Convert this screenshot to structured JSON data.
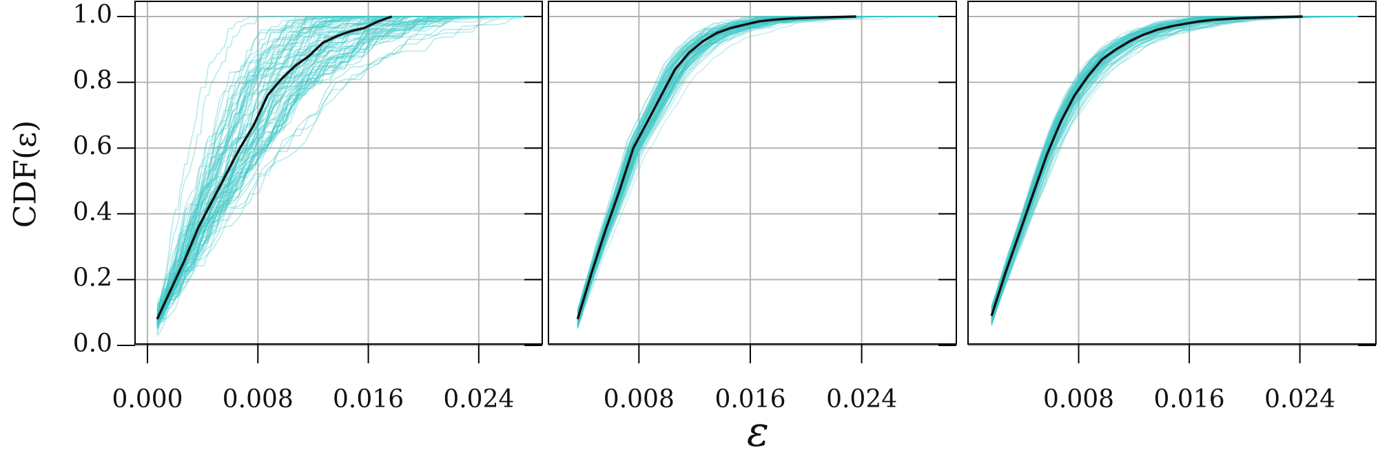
{
  "chart_data": {
    "type": "line",
    "ylabel": "CDF(ε)",
    "xlabel": "ε",
    "ylim": [
      0.0,
      1.0
    ],
    "yticks": [
      0.0,
      0.2,
      0.4,
      0.6,
      0.8,
      1.0
    ],
    "ytick_labels": [
      "0.0",
      "0.2",
      "0.4",
      "0.6",
      "0.8",
      "1.0"
    ],
    "grid": true,
    "colors": {
      "samples": "#40c8c8",
      "mean": "#111111",
      "grid": "#b3b3b3"
    },
    "panels": [
      {
        "id": "panel-1",
        "xlim": [
          -0.0009,
          0.0286
        ],
        "xticks": [
          0.0,
          0.008,
          0.016,
          0.024
        ],
        "xtick_labels": [
          "0.000",
          "0.008",
          "0.016",
          "0.024"
        ],
        "sample_curves": 90,
        "sample_spread": 0.35,
        "mean_curve": {
          "x": [
            0.0007,
            0.0017,
            0.0027,
            0.0037,
            0.0047,
            0.0057,
            0.0067,
            0.0077,
            0.0087,
            0.0097,
            0.0107,
            0.0117,
            0.0127,
            0.0137,
            0.0147,
            0.0157,
            0.0167,
            0.0177
          ],
          "y": [
            0.08,
            0.17,
            0.26,
            0.36,
            0.44,
            0.52,
            0.6,
            0.67,
            0.76,
            0.81,
            0.85,
            0.88,
            0.92,
            0.94,
            0.955,
            0.965,
            0.985,
            1.0
          ]
        }
      },
      {
        "id": "panel-2",
        "xlim": [
          0.0015,
          0.0308
        ],
        "xticks": [
          0.008,
          0.016,
          0.024
        ],
        "xtick_labels": [
          "0.008",
          "0.016",
          "0.024"
        ],
        "sample_curves": 90,
        "sample_spread": 0.12,
        "mean_curve": {
          "x": [
            0.0036,
            0.0046,
            0.0056,
            0.0066,
            0.0076,
            0.0086,
            0.0096,
            0.0106,
            0.0116,
            0.0126,
            0.0136,
            0.0146,
            0.0156,
            0.0166,
            0.0176,
            0.0186,
            0.0196,
            0.0216,
            0.0236
          ],
          "y": [
            0.08,
            0.22,
            0.35,
            0.47,
            0.6,
            0.68,
            0.76,
            0.84,
            0.89,
            0.925,
            0.95,
            0.965,
            0.975,
            0.985,
            0.99,
            0.993,
            0.995,
            0.998,
            1.0
          ]
        }
      },
      {
        "id": "panel-3",
        "xlim": [
          0.0,
          0.0295
        ],
        "xticks": [
          0.008,
          0.016,
          0.024
        ],
        "xtick_labels": [
          "0.008",
          "0.016",
          "0.024"
        ],
        "sample_curves": 90,
        "sample_spread": 0.1,
        "mean_curve": {
          "x": [
            0.0017,
            0.0027,
            0.0037,
            0.0047,
            0.0057,
            0.0067,
            0.0077,
            0.0087,
            0.0097,
            0.0107,
            0.0117,
            0.0127,
            0.0137,
            0.0147,
            0.0157,
            0.0167,
            0.0177,
            0.0197,
            0.0217,
            0.0242
          ],
          "y": [
            0.09,
            0.22,
            0.34,
            0.46,
            0.58,
            0.68,
            0.76,
            0.82,
            0.87,
            0.9,
            0.925,
            0.945,
            0.96,
            0.97,
            0.978,
            0.985,
            0.99,
            0.995,
            0.998,
            1.0
          ]
        }
      }
    ]
  }
}
